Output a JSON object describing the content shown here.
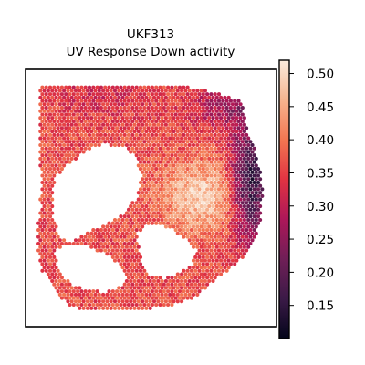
{
  "chart_data": {
    "type": "heatmap",
    "title_line1": "UKF313",
    "title_line2": "UV Response Down activity",
    "xlabel": "",
    "ylabel": "",
    "grid": false,
    "colormap": "rocket",
    "colorbar": {
      "range": [
        0.1,
        0.52
      ],
      "ticks": [
        "0.50",
        "0.45",
        "0.40",
        "0.35",
        "0.30",
        "0.25",
        "0.20",
        "0.15"
      ],
      "tick_values": [
        0.5,
        0.45,
        0.4,
        0.35,
        0.3,
        0.25,
        0.2,
        0.15
      ]
    },
    "spatial_summary": {
      "high_activity_region": "center / center-right tissue",
      "low_activity_region": "right edge of tissue"
    }
  },
  "colors": {
    "rocket_stops": [
      "#03051a",
      "#3b1a47",
      "#701f57",
      "#ad1759",
      "#e13342",
      "#f37651",
      "#f6b48f",
      "#faebdd"
    ]
  }
}
